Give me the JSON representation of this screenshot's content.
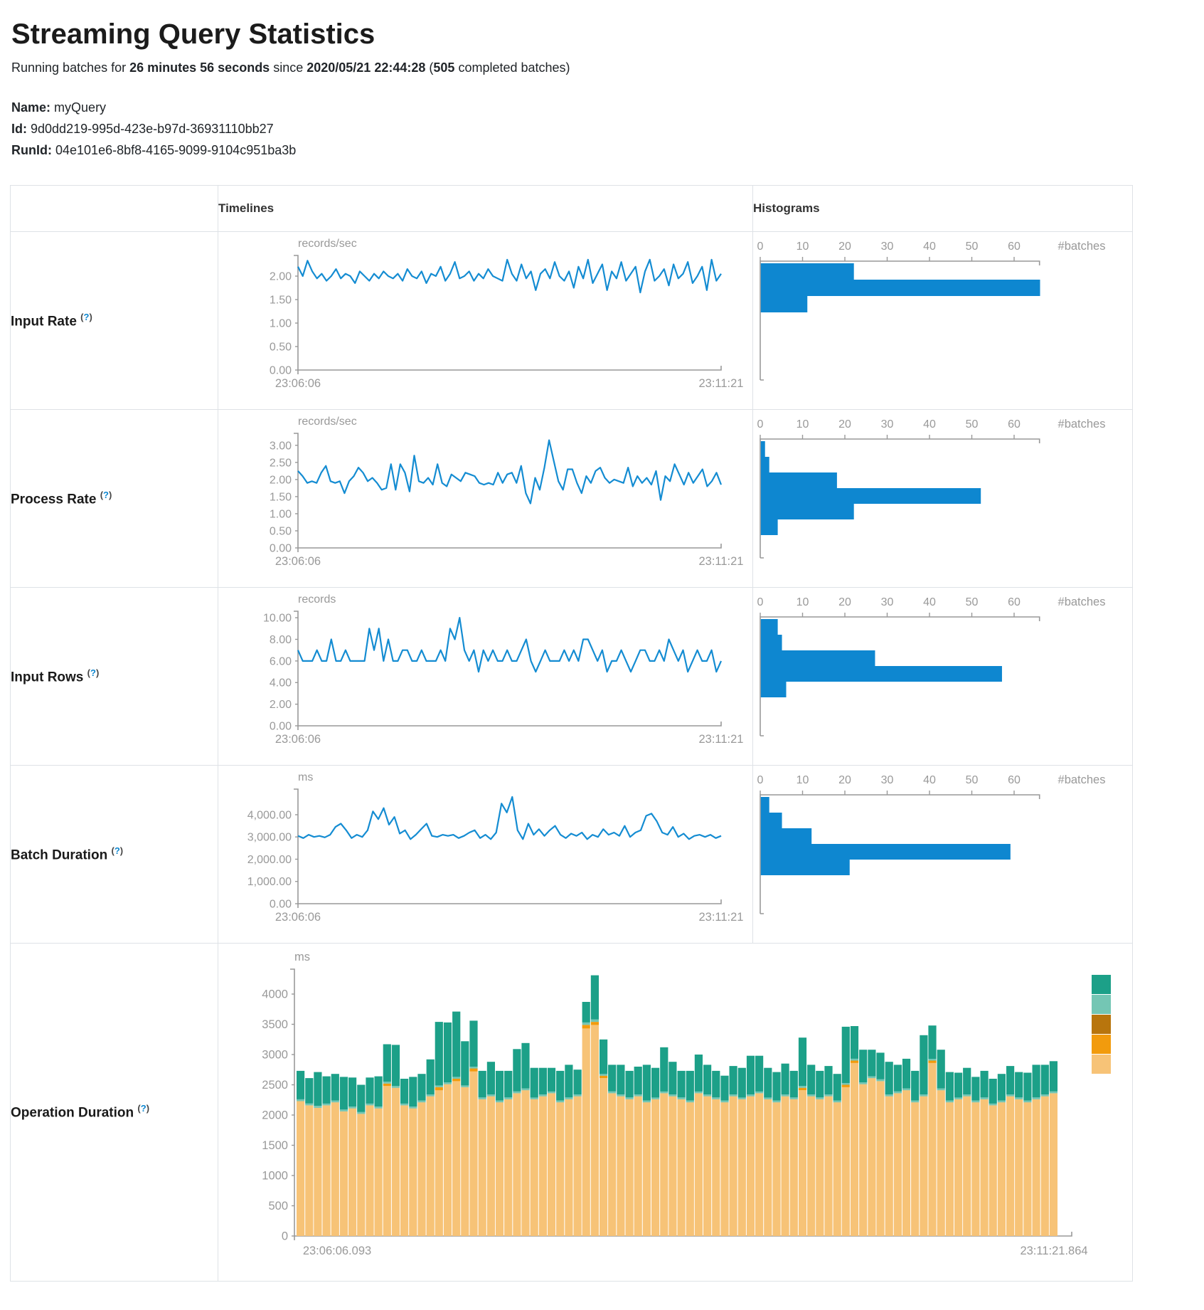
{
  "header": {
    "title": "Streaming Query Statistics",
    "subtitle": {
      "pre": "Running batches for ",
      "duration": "26 minutes 56 seconds",
      "mid": " since ",
      "start_time": "2020/05/21 22:44:28",
      "paren": " (",
      "batch_count": "505",
      "post": " completed batches)"
    },
    "meta": {
      "name_label": "Name:",
      "name": "myQuery",
      "id_label": "Id:",
      "id": "9d0dd219-995d-423e-b97d-36931110bb27",
      "runid_label": "RunId:",
      "runid": "04e101e6-8bf8-4165-9099-9104c951ba3b"
    }
  },
  "table": {
    "col_timelines": "Timelines",
    "col_histograms": "Histograms",
    "batches_label": "#batches",
    "hist_ticks": [
      0,
      10,
      20,
      30,
      40,
      50,
      60
    ]
  },
  "colors": {
    "line_blue": "#148cd2",
    "bar_blue": "#0e87d0",
    "axis_gray": "#999999",
    "border_gray": "#dee2e6",
    "help_blue": "#0e87d0",
    "op_teal": "#1ca088",
    "op_light_teal": "#74c6b4",
    "op_dark_gold": "#b8750d",
    "op_orange": "#f29b0d",
    "op_light_orange": "#f7c377"
  },
  "chart_data": [
    {
      "type": "line",
      "row": "Input Rate",
      "unit": "records/sec",
      "x_start": "23:06:06",
      "x_end": "23:11:21",
      "ytick_labels": [
        "2.00",
        "1.50",
        "1.00",
        "0.50",
        "0.00"
      ],
      "ytick_values": [
        2,
        1.5,
        1,
        0.5,
        0
      ],
      "axis_top": 2.44,
      "series": [
        2.2,
        2.0,
        2.33,
        2.1,
        1.95,
        2.05,
        1.9,
        2.0,
        2.15,
        1.95,
        2.05,
        2.0,
        1.85,
        2.1,
        2.0,
        1.9,
        2.05,
        1.95,
        2.1,
        2.0,
        1.95,
        2.05,
        1.9,
        2.15,
        2.0,
        1.95,
        2.1,
        1.85,
        2.05,
        2.0,
        2.2,
        1.9,
        2.05,
        2.3,
        1.95,
        2.0,
        2.1,
        1.9,
        2.05,
        1.95,
        2.15,
        2.0,
        1.95,
        1.9,
        2.35,
        2.05,
        1.9,
        2.25,
        1.95,
        2.1,
        1.7,
        2.05,
        2.15,
        1.95,
        2.3,
        2.0,
        1.9,
        2.1,
        1.75,
        2.2,
        1.95,
        2.35,
        1.85,
        2.05,
        2.25,
        1.7,
        2.1,
        1.95,
        2.3,
        1.9,
        2.05,
        2.2,
        1.65,
        2.1,
        2.35,
        1.9,
        2.0,
        2.15,
        1.8,
        2.25,
        1.95,
        2.05,
        2.3,
        1.85,
        2.0,
        2.2,
        1.7,
        2.35,
        1.9,
        2.05
      ],
      "histogram": [
        22,
        66,
        11
      ]
    },
    {
      "type": "line",
      "row": "Process Rate",
      "unit": "records/sec",
      "x_start": "23:06:06",
      "x_end": "23:11:21",
      "ytick_labels": [
        "3.00",
        "2.50",
        "2.00",
        "1.50",
        "1.00",
        "0.50",
        "0.00"
      ],
      "ytick_values": [
        3,
        2.5,
        2,
        1.5,
        1,
        0.5,
        0
      ],
      "axis_top": 3.35,
      "series": [
        2.25,
        2.1,
        1.9,
        1.95,
        1.9,
        2.2,
        2.4,
        1.95,
        1.9,
        1.95,
        1.6,
        1.95,
        2.1,
        2.35,
        2.2,
        1.95,
        2.05,
        1.9,
        1.7,
        1.75,
        2.45,
        1.7,
        2.45,
        2.2,
        1.65,
        2.7,
        1.95,
        1.9,
        2.05,
        1.85,
        2.45,
        1.9,
        1.8,
        2.15,
        2.05,
        1.95,
        2.2,
        2.15,
        2.1,
        1.9,
        1.85,
        1.9,
        1.85,
        2.2,
        1.9,
        2.15,
        2.2,
        1.9,
        2.4,
        1.6,
        1.3,
        2.05,
        1.7,
        2.35,
        3.15,
        2.55,
        1.95,
        1.7,
        2.3,
        2.3,
        1.9,
        1.6,
        2.1,
        1.9,
        2.25,
        2.35,
        2.05,
        1.9,
        2.0,
        1.95,
        1.9,
        2.35,
        1.8,
        2.1,
        1.9,
        2.05,
        1.85,
        2.25,
        1.4,
        2.1,
        1.95,
        2.45,
        2.15,
        1.85,
        2.2,
        1.9,
        2.1,
        2.3,
        1.8,
        1.95,
        2.2,
        1.85
      ],
      "histogram": [
        1,
        2,
        18,
        52,
        22,
        4
      ]
    },
    {
      "type": "line",
      "row": "Input Rows",
      "unit": "records",
      "x_start": "23:06:06",
      "x_end": "23:11:21",
      "ytick_labels": [
        "10.00",
        "8.00",
        "6.00",
        "4.00",
        "2.00",
        "0.00"
      ],
      "ytick_values": [
        10,
        8,
        6,
        4,
        2,
        0
      ],
      "axis_top": 10.6,
      "series": [
        7,
        6,
        6,
        6,
        7,
        6,
        6,
        8,
        6,
        6,
        7,
        6,
        6,
        6,
        6,
        9,
        7,
        9,
        6,
        8,
        6,
        6,
        7,
        7,
        6,
        6,
        7,
        6,
        6,
        6,
        7,
        6,
        9,
        8,
        10,
        7,
        6,
        7,
        5,
        7,
        6,
        7,
        6,
        6,
        7,
        6,
        6,
        7,
        8,
        6,
        5,
        6,
        7,
        6,
        6,
        6,
        7,
        6,
        7,
        6,
        8,
        8,
        7,
        6,
        7,
        5,
        6,
        6,
        7,
        6,
        5,
        6,
        7,
        7,
        6,
        6,
        7,
        6,
        8,
        7,
        6,
        7,
        5,
        6,
        7,
        6,
        6,
        7,
        5,
        6
      ],
      "histogram": [
        4,
        5,
        27,
        57,
        6
      ]
    },
    {
      "type": "line",
      "row": "Batch Duration",
      "unit": "ms",
      "x_start": "23:06:06",
      "x_end": "23:11:21",
      "ytick_labels": [
        "4,000.00",
        "3,000.00",
        "2,000.00",
        "1,000.00",
        "0.00"
      ],
      "ytick_values": [
        4000,
        3000,
        2000,
        1000,
        0
      ],
      "axis_top": 5150,
      "series": [
        3050,
        2950,
        3100,
        3000,
        3050,
        2980,
        3100,
        3450,
        3600,
        3300,
        2950,
        3100,
        3000,
        3300,
        4150,
        3800,
        4300,
        3550,
        3900,
        3150,
        3300,
        2900,
        3100,
        3350,
        3600,
        3050,
        3000,
        3100,
        3050,
        3100,
        2950,
        3050,
        3200,
        3300,
        2950,
        3100,
        2900,
        3200,
        4500,
        4100,
        4800,
        3300,
        2900,
        3600,
        3100,
        3350,
        3050,
        3300,
        3500,
        3100,
        2950,
        3150,
        3050,
        3200,
        2900,
        3100,
        3000,
        3350,
        3100,
        3200,
        3050,
        3500,
        3000,
        3200,
        3300,
        3950,
        4050,
        3700,
        3200,
        3100,
        3450,
        3000,
        3150,
        2900,
        3050,
        3100,
        3000,
        3100,
        2950,
        3050
      ],
      "histogram": [
        2,
        5,
        12,
        59,
        21
      ]
    },
    {
      "type": "stacked-bar",
      "row": "Operation Duration",
      "unit": "ms",
      "x_start": "23:06:06.093",
      "x_end": "23:11:21.864",
      "ytick_labels": [
        "4000",
        "3500",
        "3000",
        "2500",
        "2000",
        "1500",
        "1000",
        "500",
        "0"
      ],
      "ytick_values": [
        4000,
        3500,
        3000,
        2500,
        2000,
        1500,
        1000,
        500,
        0
      ],
      "axis_top": 4410,
      "legend_colors": [
        "#1ca088",
        "#74c6b4",
        "#b8750d",
        "#f29b0d",
        "#f7c377"
      ],
      "stack_colors": [
        "#f7c377",
        "#f29b0d",
        "#74c6b4",
        "#1ca088"
      ],
      "bars": [
        [
          2230,
          0,
          30,
          470
        ],
        [
          2160,
          0,
          30,
          420
        ],
        [
          2120,
          0,
          30,
          560
        ],
        [
          2160,
          0,
          30,
          450
        ],
        [
          2210,
          0,
          30,
          440
        ],
        [
          2060,
          0,
          30,
          540
        ],
        [
          2110,
          0,
          30,
          480
        ],
        [
          2020,
          0,
          30,
          450
        ],
        [
          2160,
          0,
          30,
          430
        ],
        [
          2110,
          0,
          30,
          500
        ],
        [
          2480,
          40,
          30,
          620
        ],
        [
          2450,
          0,
          30,
          680
        ],
        [
          2160,
          0,
          30,
          410
        ],
        [
          2110,
          0,
          30,
          490
        ],
        [
          2210,
          0,
          30,
          440
        ],
        [
          2310,
          0,
          30,
          580
        ],
        [
          2410,
          50,
          30,
          1050
        ],
        [
          2510,
          0,
          30,
          990
        ],
        [
          2560,
          40,
          30,
          1080
        ],
        [
          2460,
          0,
          30,
          730
        ],
        [
          2720,
          50,
          30,
          760
        ],
        [
          2260,
          0,
          30,
          440
        ],
        [
          2310,
          0,
          30,
          540
        ],
        [
          2210,
          0,
          30,
          490
        ],
        [
          2260,
          0,
          30,
          440
        ],
        [
          2360,
          0,
          30,
          700
        ],
        [
          2410,
          0,
          30,
          750
        ],
        [
          2260,
          0,
          30,
          490
        ],
        [
          2310,
          0,
          30,
          440
        ],
        [
          2360,
          0,
          30,
          390
        ],
        [
          2210,
          0,
          30,
          490
        ],
        [
          2260,
          0,
          30,
          540
        ],
        [
          2310,
          0,
          30,
          410
        ],
        [
          3430,
          60,
          40,
          340
        ],
        [
          3490,
          50,
          40,
          730
        ],
        [
          2610,
          40,
          30,
          570
        ],
        [
          2360,
          0,
          30,
          440
        ],
        [
          2310,
          0,
          30,
          490
        ],
        [
          2260,
          0,
          30,
          440
        ],
        [
          2310,
          0,
          30,
          460
        ],
        [
          2210,
          0,
          30,
          590
        ],
        [
          2260,
          0,
          30,
          490
        ],
        [
          2360,
          0,
          30,
          730
        ],
        [
          2310,
          0,
          30,
          540
        ],
        [
          2260,
          0,
          30,
          440
        ],
        [
          2210,
          0,
          30,
          490
        ],
        [
          2360,
          0,
          30,
          610
        ],
        [
          2310,
          0,
          30,
          490
        ],
        [
          2260,
          0,
          30,
          440
        ],
        [
          2210,
          0,
          30,
          410
        ],
        [
          2310,
          0,
          30,
          470
        ],
        [
          2260,
          0,
          30,
          490
        ],
        [
          2310,
          0,
          30,
          640
        ],
        [
          2360,
          0,
          30,
          590
        ],
        [
          2260,
          0,
          30,
          490
        ],
        [
          2210,
          0,
          30,
          470
        ],
        [
          2310,
          0,
          30,
          510
        ],
        [
          2260,
          0,
          30,
          440
        ],
        [
          2410,
          40,
          30,
          800
        ],
        [
          2310,
          0,
          30,
          490
        ],
        [
          2260,
          0,
          30,
          440
        ],
        [
          2310,
          0,
          30,
          470
        ],
        [
          2210,
          0,
          30,
          440
        ],
        [
          2460,
          40,
          30,
          930
        ],
        [
          2860,
          40,
          30,
          540
        ],
        [
          2510,
          0,
          30,
          540
        ],
        [
          2610,
          0,
          30,
          440
        ],
        [
          2560,
          0,
          30,
          440
        ],
        [
          2310,
          0,
          30,
          540
        ],
        [
          2360,
          0,
          30,
          440
        ],
        [
          2410,
          0,
          30,
          490
        ],
        [
          2210,
          0,
          30,
          490
        ],
        [
          2310,
          0,
          30,
          980
        ],
        [
          2860,
          40,
          30,
          550
        ],
        [
          2410,
          0,
          30,
          640
        ],
        [
          2210,
          0,
          30,
          470
        ],
        [
          2260,
          0,
          30,
          410
        ],
        [
          2310,
          0,
          30,
          440
        ],
        [
          2210,
          0,
          30,
          390
        ],
        [
          2260,
          0,
          30,
          440
        ],
        [
          2160,
          0,
          30,
          410
        ],
        [
          2210,
          0,
          30,
          440
        ],
        [
          2310,
          0,
          30,
          470
        ],
        [
          2260,
          0,
          30,
          420
        ],
        [
          2210,
          0,
          30,
          460
        ],
        [
          2260,
          0,
          30,
          540
        ],
        [
          2310,
          0,
          30,
          490
        ],
        [
          2360,
          0,
          30,
          500
        ]
      ]
    }
  ],
  "rows": [
    {
      "label": "Input Rate",
      "help": {
        "open": "(",
        "q": "?",
        "close": ")"
      }
    },
    {
      "label": "Process Rate",
      "help": {
        "open": "(",
        "q": "?",
        "close": ")"
      }
    },
    {
      "label": "Input Rows",
      "help": {
        "open": "(",
        "q": "?",
        "close": ")"
      }
    },
    {
      "label": "Batch Duration",
      "help": {
        "open": "(",
        "q": "?",
        "close": ")"
      }
    },
    {
      "label": "Operation Duration",
      "help": {
        "open": "(",
        "q": "?",
        "close": ")"
      }
    }
  ]
}
